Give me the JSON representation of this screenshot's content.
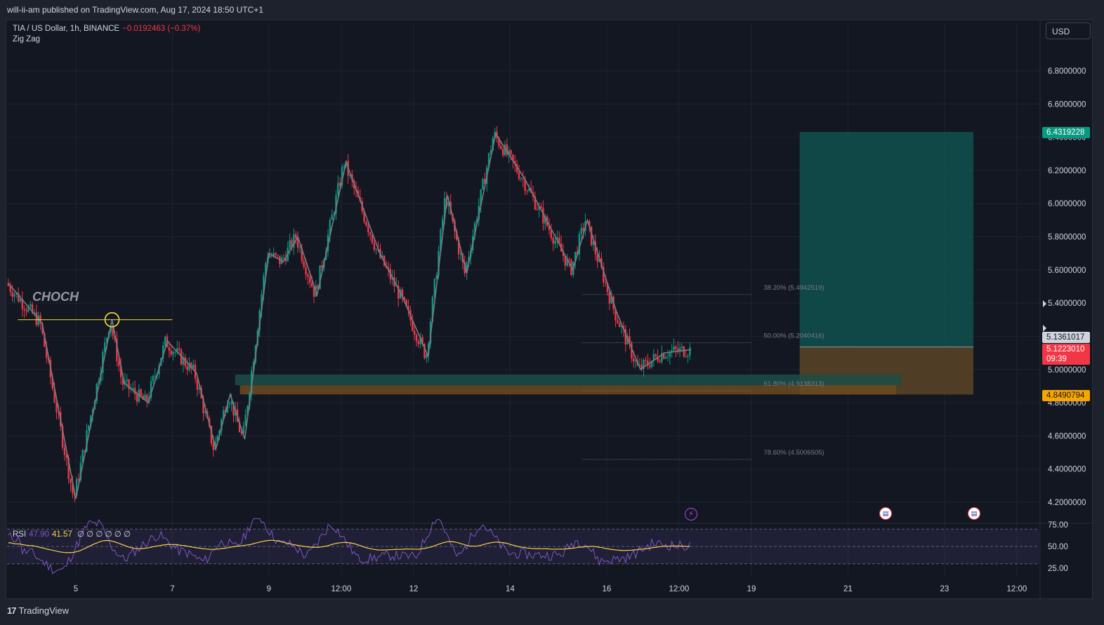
{
  "header": {
    "published": "will-ii-am published on TradingView.com, Aug 17, 2024 18:50 UTC+1"
  },
  "legend": {
    "symbol": "TIA / US Dollar, 1h, BINANCE",
    "change": "−0.0192463 (−0.37%)",
    "indicator": "Zig Zag"
  },
  "currency_button": "USD",
  "annotation": {
    "choch": "CHOCH"
  },
  "rsi_legend": {
    "label": "RSI",
    "value": "47.90",
    "ma": "41.57",
    "extras": "∅ ∅ ∅ ∅ ∅ ∅"
  },
  "price_tags": {
    "target": "6.4319228",
    "last": "5.1361017",
    "current": "5.1223010",
    "countdown": "09:39",
    "stop": "4.8490794"
  },
  "brand": "TradingView",
  "colors": {
    "up": "#089981",
    "down": "#f23645",
    "zigzag": "#787b86",
    "rsi_line": "#7e57c2",
    "rsi_ma": "#f7d14a",
    "target_zone": "#0f5a54",
    "stop_zone": "#5c4426",
    "choch_line": "#f7e13a"
  },
  "chart_data": {
    "type": "candlestick",
    "symbol": "TIA / US Dollar",
    "interval": "1h",
    "y_axis_labels": [
      "6.8000000",
      "6.6000000",
      "6.4000000",
      "6.2000000",
      "6.0000000",
      "5.8000000",
      "5.6000000",
      "5.4000000",
      "5.2000000",
      "5.0000000",
      "4.8000000",
      "4.6000000",
      "4.4000000",
      "4.2000000"
    ],
    "y_axis_values": [
      6.8,
      6.6,
      6.4,
      6.2,
      6.0,
      5.8,
      5.6,
      5.4,
      5.2,
      5.0,
      4.8,
      4.6,
      4.4,
      4.2
    ],
    "x_axis_labels": [
      "5",
      "7",
      "9",
      "12:00",
      "12",
      "14",
      "16",
      "12:00",
      "19",
      "21",
      "23",
      "12:00"
    ],
    "x_axis_days": [
      5,
      7,
      9,
      10.5,
      12,
      14,
      16,
      17.5,
      19,
      21,
      23,
      24.5
    ],
    "x_range_days": [
      3.5,
      25
    ],
    "ylim": [
      4.1,
      7.0
    ],
    "zigzag": [
      {
        "day": 3.6,
        "price": 5.52
      },
      {
        "day": 4.3,
        "price": 5.28
      },
      {
        "day": 5.0,
        "price": 4.22
      },
      {
        "day": 5.75,
        "price": 5.3
      },
      {
        "day": 6.0,
        "price": 4.92
      },
      {
        "day": 6.5,
        "price": 4.8
      },
      {
        "day": 6.9,
        "price": 5.17
      },
      {
        "day": 7.5,
        "price": 4.98
      },
      {
        "day": 7.9,
        "price": 4.52
      },
      {
        "day": 8.2,
        "price": 4.85
      },
      {
        "day": 8.5,
        "price": 4.58
      },
      {
        "day": 9.0,
        "price": 5.7
      },
      {
        "day": 9.3,
        "price": 5.65
      },
      {
        "day": 9.6,
        "price": 5.8
      },
      {
        "day": 10.0,
        "price": 5.45
      },
      {
        "day": 10.6,
        "price": 6.25
      },
      {
        "day": 11.3,
        "price": 5.7
      },
      {
        "day": 11.75,
        "price": 5.45
      },
      {
        "day": 12.3,
        "price": 5.08
      },
      {
        "day": 12.7,
        "price": 6.05
      },
      {
        "day": 13.1,
        "price": 5.58
      },
      {
        "day": 13.7,
        "price": 6.42
      },
      {
        "day": 14.3,
        "price": 6.15
      },
      {
        "day": 15.3,
        "price": 5.6
      },
      {
        "day": 15.6,
        "price": 5.9
      },
      {
        "day": 16.2,
        "price": 5.35
      },
      {
        "day": 16.7,
        "price": 5.0
      },
      {
        "day": 17.2,
        "price": 5.1
      },
      {
        "day": 17.75,
        "price": 5.12
      }
    ],
    "fibonacci": [
      {
        "label": "38.20% (5.4942519)",
        "price": 5.4942519
      },
      {
        "label": "50.00% (5.2040416)",
        "price": 5.2040416
      },
      {
        "label": "61.80% (4.9138313)",
        "price": 4.9138313
      },
      {
        "label": "78.60% (4.5006505)",
        "price": 4.5006505
      }
    ],
    "fib_range_days": [
      15.5,
      19.0
    ],
    "long_position": {
      "entry": 5.1361017,
      "target": 6.4319228,
      "stop": 4.8490794,
      "day_start": 20.0,
      "day_end": 23.6
    },
    "demand_zones": [
      {
        "top": 4.97,
        "bottom": 4.905,
        "day_start": 8.3,
        "day_end": 22.1,
        "color": "#1c4d48"
      },
      {
        "top": 4.905,
        "bottom": 4.85,
        "day_start": 8.4,
        "day_end": 22.0,
        "color": "#6d4a1e"
      }
    ],
    "choch_level": {
      "price": 5.3,
      "day_start": 3.8,
      "day_end": 7.0,
      "marker_day": 5.75
    },
    "rsi": {
      "axis_labels": [
        "75.00",
        "50.00",
        "25.00"
      ],
      "axis_values": [
        75,
        50,
        25
      ],
      "upper": 70,
      "middle": 50,
      "lower": 30,
      "latest": 47.9,
      "ma_latest": 41.57
    }
  }
}
